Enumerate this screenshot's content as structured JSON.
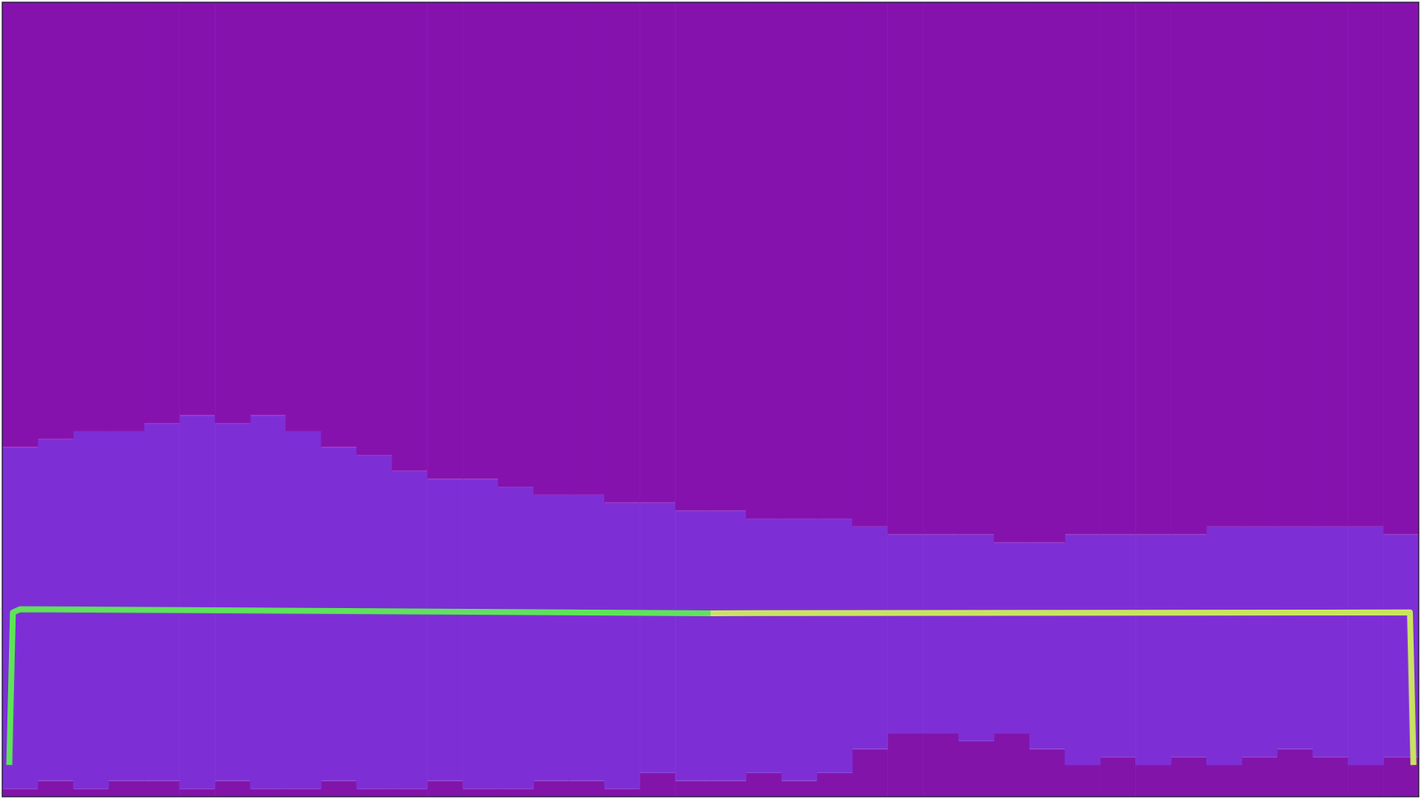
{
  "chart_data": {
    "type": "bar",
    "stacked": true,
    "tick_labels": false,
    "grid": false,
    "categories": [
      null,
      null,
      null,
      null,
      null,
      null,
      null,
      null,
      null,
      null,
      null,
      null,
      null,
      null,
      null,
      null,
      null,
      null,
      null,
      null,
      null,
      null,
      null,
      null,
      null,
      null,
      null,
      null,
      null,
      null,
      null,
      null,
      null,
      null,
      null,
      null,
      null,
      null,
      null,
      null
    ],
    "xlim": [
      0,
      40
    ],
    "ylim": [
      0,
      100
    ],
    "series": [
      {
        "color": "#8214aa",
        "values": [
          1,
          2,
          1,
          2,
          2,
          1,
          2,
          1,
          1,
          2,
          1,
          1,
          2,
          1,
          1,
          2,
          2,
          1,
          3,
          2,
          2,
          3,
          2,
          3,
          6,
          8,
          8,
          7,
          8,
          6,
          4,
          5,
          4,
          5,
          4,
          5,
          6,
          5,
          4,
          5
        ]
      },
      {
        "color": "#7d2fd5",
        "values": [
          43,
          43,
          45,
          44,
          45,
          47,
          45,
          47,
          45,
          42,
          42,
          40,
          38,
          39,
          38,
          36,
          36,
          36,
          34,
          34,
          34,
          32,
          33,
          32,
          28,
          25,
          25,
          26,
          24,
          26,
          29,
          28,
          29,
          28,
          30,
          29,
          28,
          29,
          30,
          28
        ]
      },
      {
        "color": "#8612ae",
        "values": [
          56,
          55,
          54,
          54,
          53,
          52,
          53,
          52,
          54,
          56,
          57,
          59,
          60,
          60,
          61,
          62,
          62,
          63,
          63,
          64,
          64,
          65,
          65,
          65,
          66,
          67,
          67,
          67,
          68,
          68,
          67,
          67,
          67,
          67,
          66,
          66,
          66,
          66,
          66,
          67
        ]
      },
      {
        "type": "line",
        "color": "#5ee35a",
        "x": [
          0.2,
          0.3,
          0.5,
          20
        ],
        "values": [
          4,
          23.2,
          23.6,
          23.1
        ]
      },
      {
        "type": "line",
        "color": "#c9e362",
        "x": [
          20,
          39.75,
          39.85
        ],
        "values": [
          23.1,
          23.2,
          4
        ]
      }
    ]
  }
}
